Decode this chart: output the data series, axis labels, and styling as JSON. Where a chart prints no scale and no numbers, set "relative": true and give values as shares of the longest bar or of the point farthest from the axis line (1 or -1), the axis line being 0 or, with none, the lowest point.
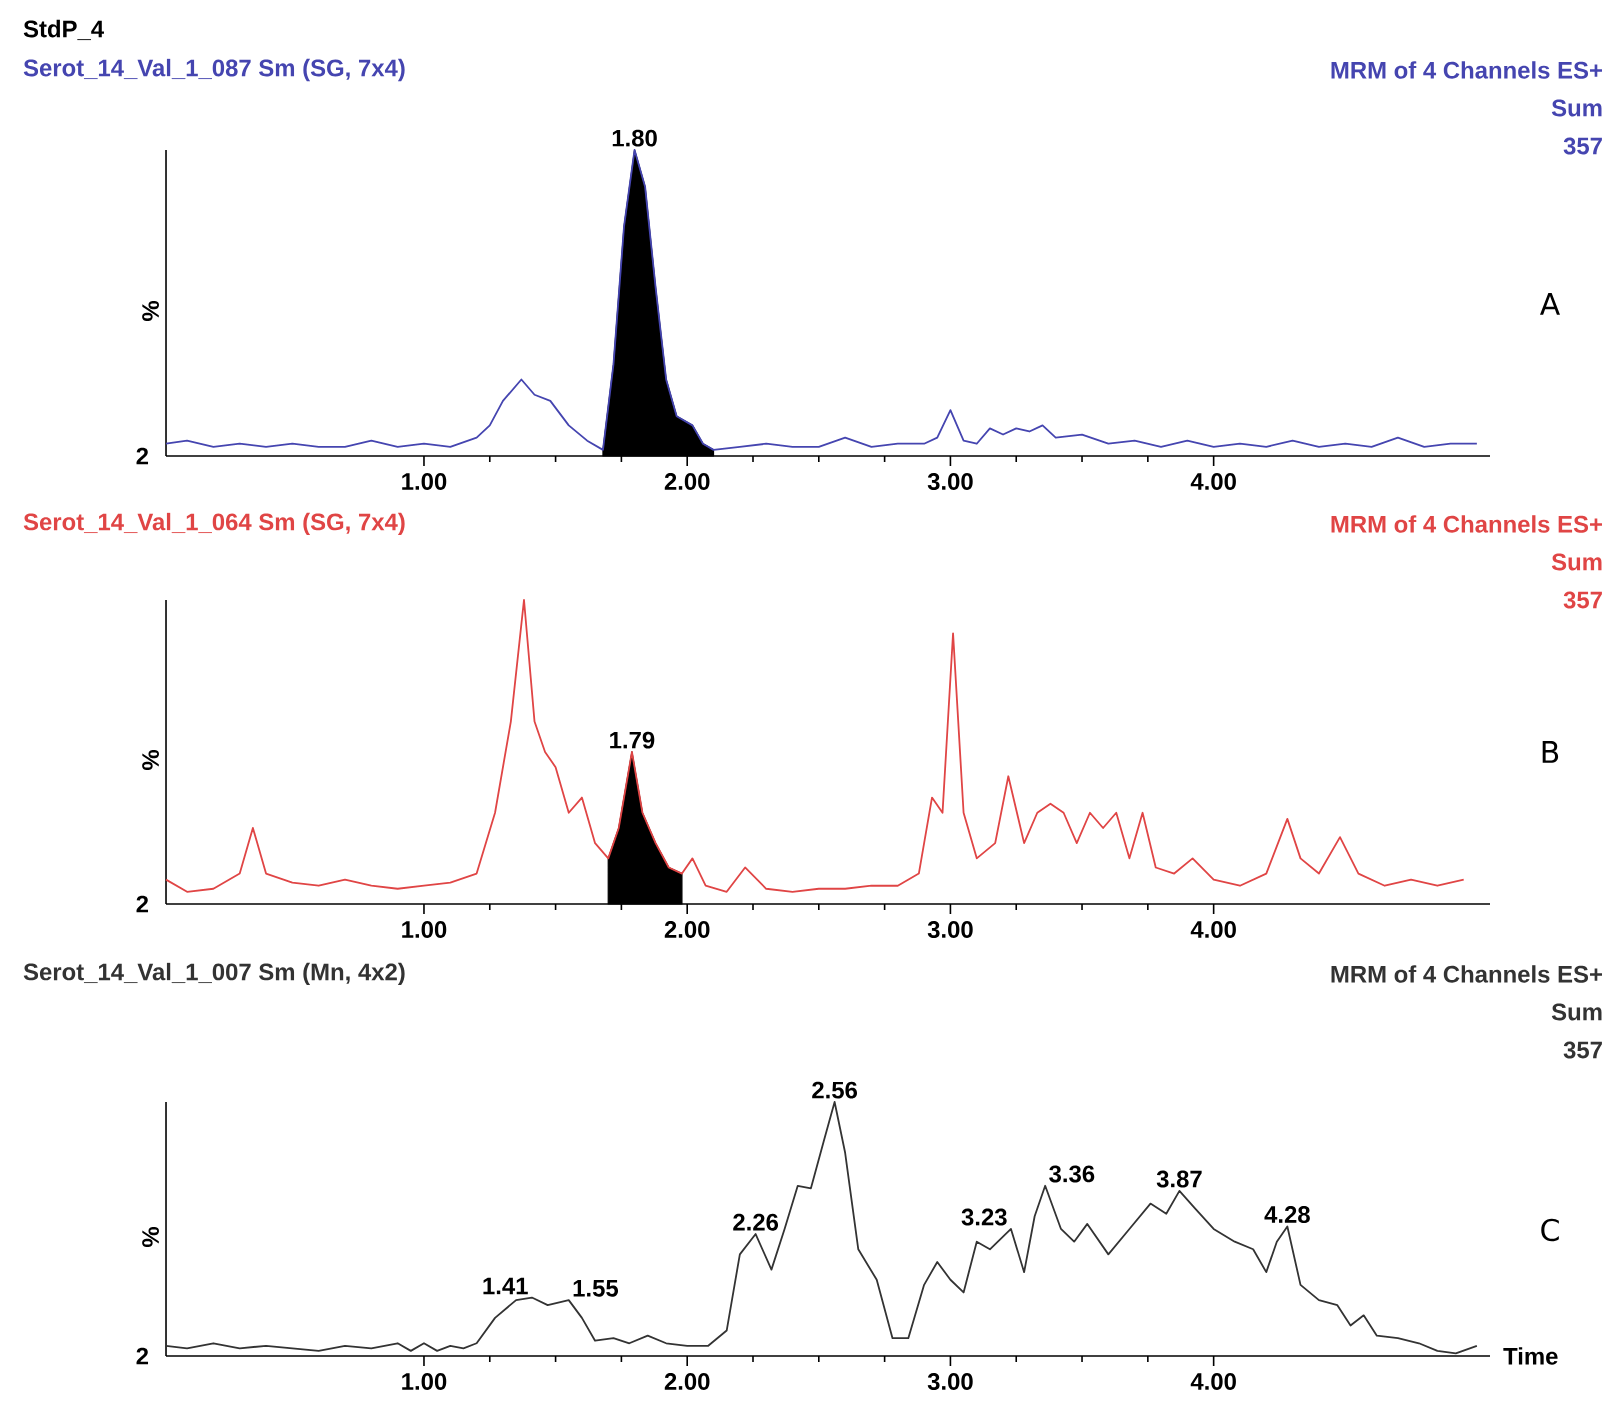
{
  "chart_data": [
    {
      "type": "line",
      "relative": true,
      "title": "StdP_4",
      "subtitle": "Serot_14_Val_1_087 Sm (SG, 7x4)",
      "ylabel": "%",
      "xlim": [
        0.02,
        5.05
      ],
      "xticks": [
        {
          "value": 1,
          "label": "1.00"
        },
        {
          "value": 2,
          "label": "2.00"
        },
        {
          "value": 3,
          "label": "3.00"
        },
        {
          "value": 4,
          "label": "4.00"
        }
      ],
      "series": [
        {
          "color": "#4545b0",
          "x": [
            0.02,
            0.1,
            0.2,
            0.3,
            0.4,
            0.5,
            0.6,
            0.7,
            0.8,
            0.9,
            1.0,
            1.1,
            1.2,
            1.25,
            1.3,
            1.37,
            1.42,
            1.48,
            1.55,
            1.62,
            1.68,
            1.72,
            1.76,
            1.8,
            1.84,
            1.88,
            1.92,
            1.96,
            2.02,
            2.06,
            2.1,
            2.2,
            2.3,
            2.4,
            2.5,
            2.6,
            2.7,
            2.8,
            2.9,
            2.95,
            3.0,
            3.05,
            3.1,
            3.15,
            3.2,
            3.25,
            3.3,
            3.35,
            3.4,
            3.5,
            3.6,
            3.7,
            3.8,
            3.9,
            4.0,
            4.1,
            4.2,
            4.3,
            4.4,
            4.5,
            4.6,
            4.7,
            4.8,
            4.9,
            5.0
          ],
          "values": [
            0.04,
            0.05,
            0.03,
            0.04,
            0.03,
            0.04,
            0.03,
            0.03,
            0.05,
            0.03,
            0.04,
            0.03,
            0.06,
            0.1,
            0.18,
            0.25,
            0.2,
            0.18,
            0.1,
            0.05,
            0.02,
            0.3,
            0.75,
            1.0,
            0.88,
            0.55,
            0.25,
            0.13,
            0.1,
            0.04,
            0.02,
            0.03,
            0.04,
            0.03,
            0.03,
            0.06,
            0.03,
            0.04,
            0.04,
            0.06,
            0.15,
            0.05,
            0.04,
            0.09,
            0.07,
            0.09,
            0.08,
            0.1,
            0.06,
            0.07,
            0.04,
            0.05,
            0.03,
            0.05,
            0.03,
            0.04,
            0.03,
            0.05,
            0.03,
            0.04,
            0.03,
            0.06,
            0.03,
            0.04,
            0.04
          ]
        },
        {
          "type": "area",
          "color": "#000000",
          "x": [
            1.68,
            1.72,
            1.76,
            1.8,
            1.84,
            1.88,
            1.92,
            1.96,
            2.02,
            2.06,
            2.1
          ],
          "values": [
            0.02,
            0.3,
            0.75,
            1.0,
            0.88,
            0.55,
            0.25,
            0.13,
            0.1,
            0.04,
            0.02
          ]
        }
      ],
      "annotations": [
        "MRM of 4 Channels ES+",
        "Sum",
        "357",
        "A",
        "2",
        {
          "text": "1.80",
          "x": 1.8,
          "y": 1.0
        }
      ]
    },
    {
      "type": "line",
      "relative": true,
      "subtitle": "Serot_14_Val_1_064 Sm (SG, 7x4)",
      "ylabel": "%",
      "xlim": [
        0.02,
        5.05
      ],
      "xticks": [
        {
          "value": 1,
          "label": "1.00"
        },
        {
          "value": 2,
          "label": "2.00"
        },
        {
          "value": 3,
          "label": "3.00"
        },
        {
          "value": 4,
          "label": "4.00"
        }
      ],
      "series": [
        {
          "color": "#e04545",
          "x": [
            0.02,
            0.1,
            0.2,
            0.3,
            0.35,
            0.4,
            0.5,
            0.6,
            0.7,
            0.8,
            0.9,
            1.0,
            1.1,
            1.2,
            1.27,
            1.33,
            1.38,
            1.42,
            1.46,
            1.5,
            1.55,
            1.6,
            1.65,
            1.7,
            1.74,
            1.79,
            1.83,
            1.88,
            1.93,
            1.98,
            2.02,
            2.07,
            2.15,
            2.22,
            2.3,
            2.4,
            2.5,
            2.6,
            2.7,
            2.8,
            2.88,
            2.93,
            2.97,
            3.01,
            3.05,
            3.1,
            3.17,
            3.22,
            3.28,
            3.33,
            3.38,
            3.43,
            3.48,
            3.53,
            3.58,
            3.63,
            3.68,
            3.73,
            3.78,
            3.85,
            3.92,
            4.0,
            4.1,
            4.2,
            4.28,
            4.33,
            4.4,
            4.48,
            4.55,
            4.65,
            4.75,
            4.85,
            4.95
          ],
          "values": [
            0.08,
            0.04,
            0.05,
            0.1,
            0.25,
            0.1,
            0.07,
            0.06,
            0.08,
            0.06,
            0.05,
            0.06,
            0.07,
            0.1,
            0.3,
            0.6,
            1.0,
            0.6,
            0.5,
            0.45,
            0.3,
            0.35,
            0.2,
            0.15,
            0.25,
            0.5,
            0.3,
            0.2,
            0.12,
            0.1,
            0.15,
            0.06,
            0.04,
            0.12,
            0.05,
            0.04,
            0.05,
            0.05,
            0.06,
            0.06,
            0.1,
            0.35,
            0.3,
            0.89,
            0.3,
            0.15,
            0.2,
            0.42,
            0.2,
            0.3,
            0.33,
            0.3,
            0.2,
            0.3,
            0.25,
            0.3,
            0.15,
            0.3,
            0.12,
            0.1,
            0.15,
            0.08,
            0.06,
            0.1,
            0.28,
            0.15,
            0.1,
            0.22,
            0.1,
            0.06,
            0.08,
            0.06,
            0.08
          ]
        },
        {
          "type": "area",
          "color": "#000000",
          "x": [
            1.7,
            1.74,
            1.79,
            1.83,
            1.88,
            1.93,
            1.98
          ],
          "values": [
            0.15,
            0.25,
            0.5,
            0.3,
            0.2,
            0.12,
            0.1
          ]
        }
      ],
      "annotations": [
        "MRM of 4 Channels ES+",
        "Sum",
        "357",
        "B",
        "2",
        {
          "text": "1.79",
          "x": 1.79,
          "y": 0.5
        }
      ]
    },
    {
      "type": "line",
      "relative": true,
      "subtitle": "Serot_14_Val_1_007 Sm (Mn, 4x2)",
      "ylabel": "%",
      "xlabel": "Time",
      "xlim": [
        0.02,
        5.05
      ],
      "xticks": [
        {
          "value": 1,
          "label": "1.00"
        },
        {
          "value": 2,
          "label": "2.00"
        },
        {
          "value": 3,
          "label": "3.00"
        },
        {
          "value": 4,
          "label": "4.00"
        }
      ],
      "series": [
        {
          "color": "#333333",
          "x": [
            0.02,
            0.1,
            0.2,
            0.3,
            0.4,
            0.5,
            0.6,
            0.7,
            0.8,
            0.9,
            0.95,
            1.0,
            1.05,
            1.1,
            1.15,
            1.2,
            1.27,
            1.35,
            1.41,
            1.47,
            1.55,
            1.6,
            1.65,
            1.72,
            1.78,
            1.85,
            1.92,
            2.0,
            2.08,
            2.15,
            2.2,
            2.26,
            2.32,
            2.37,
            2.42,
            2.47,
            2.52,
            2.56,
            2.6,
            2.65,
            2.72,
            2.78,
            2.84,
            2.9,
            2.95,
            3.0,
            3.05,
            3.1,
            3.15,
            3.23,
            3.28,
            3.32,
            3.36,
            3.42,
            3.47,
            3.52,
            3.6,
            3.68,
            3.76,
            3.82,
            3.87,
            3.93,
            4.0,
            4.08,
            4.15,
            4.2,
            4.24,
            4.28,
            4.33,
            4.4,
            4.47,
            4.52,
            4.57,
            4.62,
            4.7,
            4.78,
            4.85,
            4.92,
            5.0
          ],
          "values": [
            0.04,
            0.03,
            0.05,
            0.03,
            0.04,
            0.03,
            0.02,
            0.04,
            0.03,
            0.05,
            0.02,
            0.05,
            0.02,
            0.04,
            0.03,
            0.05,
            0.15,
            0.22,
            0.23,
            0.2,
            0.22,
            0.15,
            0.06,
            0.07,
            0.05,
            0.08,
            0.05,
            0.04,
            0.04,
            0.1,
            0.4,
            0.48,
            0.34,
            0.5,
            0.67,
            0.66,
            0.85,
            1.0,
            0.8,
            0.42,
            0.3,
            0.07,
            0.07,
            0.28,
            0.37,
            0.3,
            0.25,
            0.45,
            0.42,
            0.5,
            0.33,
            0.55,
            0.67,
            0.5,
            0.45,
            0.52,
            0.4,
            0.5,
            0.6,
            0.56,
            0.65,
            0.58,
            0.5,
            0.45,
            0.42,
            0.33,
            0.45,
            0.51,
            0.28,
            0.22,
            0.2,
            0.12,
            0.16,
            0.08,
            0.07,
            0.05,
            0.02,
            0.01,
            0.04
          ]
        }
      ],
      "annotations": [
        "MRM of 4 Channels ES+",
        "Sum",
        "357",
        "C",
        "2",
        {
          "text": "1.41",
          "x": 1.41,
          "y": 0.23
        },
        {
          "text": "1.55",
          "x": 1.55,
          "y": 0.22
        },
        {
          "text": "2.26",
          "x": 2.26,
          "y": 0.48
        },
        {
          "text": "2.56",
          "x": 2.56,
          "y": 1.0
        },
        {
          "text": "3.23",
          "x": 3.23,
          "y": 0.5
        },
        {
          "text": "3.36",
          "x": 3.36,
          "y": 0.67
        },
        {
          "text": "3.87",
          "x": 3.87,
          "y": 0.65
        },
        {
          "text": "4.28",
          "x": 4.28,
          "y": 0.51
        }
      ]
    }
  ]
}
